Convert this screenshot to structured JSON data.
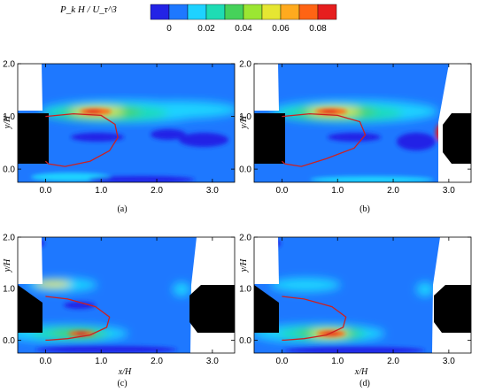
{
  "colorbar": {
    "title": "P_k H / U_τ^3",
    "tick_labels": [
      "0",
      "0.02",
      "0.04",
      "0.06",
      "0.08"
    ],
    "tick_values": [
      0,
      0.02,
      0.04,
      0.06,
      0.08
    ],
    "range": [
      -0.01,
      0.09
    ],
    "colors": [
      "#2323e6",
      "#1e78ff",
      "#1ed2ff",
      "#1edcb4",
      "#46d25a",
      "#9be632",
      "#e6e632",
      "#ffaa1e",
      "#ff6414",
      "#e61e1e"
    ]
  },
  "panels": [
    {
      "id": "a",
      "caption": "(a)",
      "xlabel": "",
      "ylabel": "y/H",
      "xticks": [
        "0.0",
        "1.0",
        "2.0",
        "3.0"
      ],
      "yticks": [
        "0.0",
        "1.0",
        "2.0"
      ],
      "right_obstacle": "none"
    },
    {
      "id": "b",
      "caption": "(b)",
      "xlabel": "",
      "ylabel": "y/H",
      "xticks": [
        "0.0",
        "1.0",
        "2.0",
        "3.0"
      ],
      "yticks": [
        "0.0",
        "1.0",
        "2.0"
      ],
      "right_obstacle": "raised"
    },
    {
      "id": "c",
      "caption": "(c)",
      "xlabel": "x/H",
      "ylabel": "y/H",
      "xticks": [
        "0.0",
        "1.0",
        "2.0",
        "3.0"
      ],
      "yticks": [
        "0.0",
        "1.0",
        "2.0"
      ],
      "right_obstacle": "full"
    },
    {
      "id": "d",
      "caption": "(d)",
      "xlabel": "x/H",
      "ylabel": "y/H",
      "xticks": [
        "0.0",
        "1.0",
        "2.0",
        "3.0"
      ],
      "yticks": [
        "0.0",
        "1.0",
        "2.0"
      ],
      "right_obstacle": "full"
    }
  ],
  "chart_data": [
    {
      "type": "heatmap",
      "title": "(a)",
      "xlabel": "",
      "ylabel": "y/H",
      "xlim": [
        -0.5,
        3.4
      ],
      "ylim": [
        -0.25,
        2.0
      ],
      "xticks": [
        0,
        1,
        2,
        3
      ],
      "yticks": [
        0,
        1,
        2
      ],
      "field": "P_k H / U_τ^3",
      "peak_regions": [
        {
          "x": [
            0.9,
            1.3
          ],
          "y": [
            1.0,
            1.1
          ],
          "value": 0.08
        },
        {
          "x": [
            0.2,
            2.2
          ],
          "y": [
            0.95,
            1.15
          ],
          "value": 0.04
        },
        {
          "x": [
            0.0,
            3.4
          ],
          "y": [
            0.85,
            1.4
          ],
          "value": 0.015
        }
      ],
      "red_contour_x": [
        0.0,
        0.5,
        1.0,
        1.25,
        1.3,
        1.15,
        0.8,
        0.35,
        0.05,
        0.0
      ],
      "red_contour_y": [
        1.0,
        1.05,
        1.02,
        0.85,
        0.6,
        0.35,
        0.15,
        0.05,
        0.1,
        0.15
      ]
    },
    {
      "type": "heatmap",
      "title": "(b)",
      "xlabel": "",
      "ylabel": "y/H",
      "xlim": [
        -0.5,
        3.4
      ],
      "ylim": [
        -0.25,
        2.0
      ],
      "xticks": [
        0,
        1,
        2,
        3
      ],
      "yticks": [
        0,
        1,
        2
      ],
      "field": "P_k H / U_τ^3",
      "peak_regions": [
        {
          "x": [
            0.8,
            1.3
          ],
          "y": [
            1.0,
            1.1
          ],
          "value": 0.08
        },
        {
          "x": [
            0.2,
            2.1
          ],
          "y": [
            0.95,
            1.15
          ],
          "value": 0.04
        },
        {
          "x": [
            0.0,
            2.8
          ],
          "y": [
            0.85,
            1.4
          ],
          "value": 0.015
        }
      ],
      "red_contour_x": [
        0.0,
        0.5,
        1.0,
        1.4,
        1.5,
        1.3,
        0.8,
        0.35,
        0.05,
        0.0
      ],
      "red_contour_y": [
        1.0,
        1.05,
        1.02,
        0.9,
        0.65,
        0.4,
        0.2,
        0.05,
        0.1,
        0.15
      ]
    },
    {
      "type": "heatmap",
      "title": "(c)",
      "xlabel": "x/H",
      "ylabel": "y/H",
      "xlim": [
        -0.5,
        3.4
      ],
      "ylim": [
        -0.25,
        2.0
      ],
      "xticks": [
        0,
        1,
        2,
        3
      ],
      "yticks": [
        0,
        1,
        2
      ],
      "field": "P_k H / U_τ^3",
      "peak_regions": [
        {
          "x": [
            0.5,
            0.8
          ],
          "y": [
            0.0,
            0.1
          ],
          "value": 0.08
        },
        {
          "x": [
            0.1,
            1.2
          ],
          "y": [
            -0.05,
            0.15
          ],
          "value": 0.04
        },
        {
          "x": [
            0.0,
            0.7
          ],
          "y": [
            0.95,
            1.1
          ],
          "value": 0.04
        }
      ],
      "red_contour_x": [
        0.0,
        0.4,
        0.9,
        1.15,
        1.1,
        0.8,
        0.4,
        0.05,
        0.0
      ],
      "red_contour_y": [
        0.85,
        0.8,
        0.65,
        0.45,
        0.25,
        0.1,
        0.03,
        0.0,
        0.0
      ]
    },
    {
      "type": "heatmap",
      "title": "(d)",
      "xlabel": "x/H",
      "ylabel": "y/H",
      "xlim": [
        -0.5,
        3.4
      ],
      "ylim": [
        -0.25,
        2.0
      ],
      "xticks": [
        0,
        1,
        2,
        3
      ],
      "yticks": [
        0,
        1,
        2
      ],
      "field": "P_k H / U_τ^3",
      "peak_regions": [
        {
          "x": [
            0.5,
            0.9
          ],
          "y": [
            -0.05,
            0.08
          ],
          "value": 0.08
        },
        {
          "x": [
            0.1,
            1.4
          ],
          "y": [
            -0.1,
            0.15
          ],
          "value": 0.04
        },
        {
          "x": [
            0.0,
            0.8
          ],
          "y": [
            0.95,
            1.1
          ],
          "value": 0.03
        }
      ],
      "red_contour_x": [
        0.0,
        0.4,
        0.9,
        1.15,
        1.1,
        0.8,
        0.4,
        0.05,
        0.0
      ],
      "red_contour_y": [
        0.85,
        0.8,
        0.65,
        0.45,
        0.25,
        0.1,
        0.03,
        0.0,
        0.0
      ]
    }
  ]
}
